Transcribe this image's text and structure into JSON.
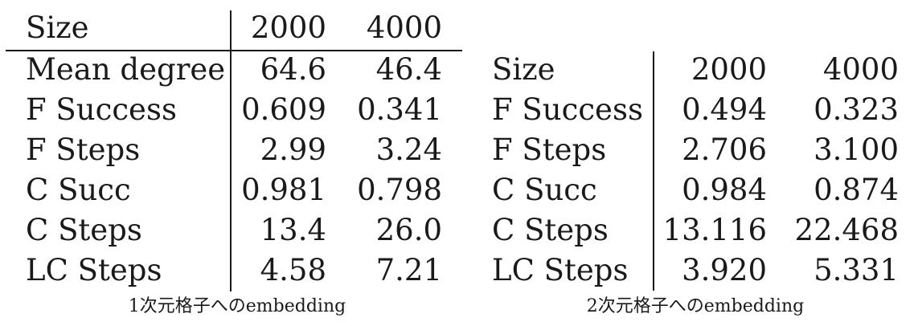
{
  "table1": {
    "header": [
      "Size",
      "2000",
      "4000"
    ],
    "rows": [
      [
        "Mean degree",
        "64.6",
        "46.4"
      ],
      [
        "F Success",
        "0.609",
        "0.341"
      ],
      [
        "F Steps",
        "2.99",
        "3.24"
      ],
      [
        "C Succ",
        "0.981",
        "0.798"
      ],
      [
        "C Steps",
        "13.4",
        "26.0"
      ],
      [
        "LC Steps",
        "4.58",
        "7.21"
      ]
    ],
    "caption": "1次元格子へのembedding"
  },
  "table2": {
    "header": [
      "Size",
      "2000",
      "4000"
    ],
    "rows": [
      [
        "F Success",
        "0.494",
        "0.323"
      ],
      [
        "F Steps",
        "2.706",
        "3.100"
      ],
      [
        "C Succ",
        "0.984",
        "0.874"
      ],
      [
        "C Steps",
        "13.116",
        "22.468"
      ],
      [
        "LC Steps",
        "3.920",
        "5.331"
      ]
    ],
    "caption": "2次元格子へのembedding"
  }
}
